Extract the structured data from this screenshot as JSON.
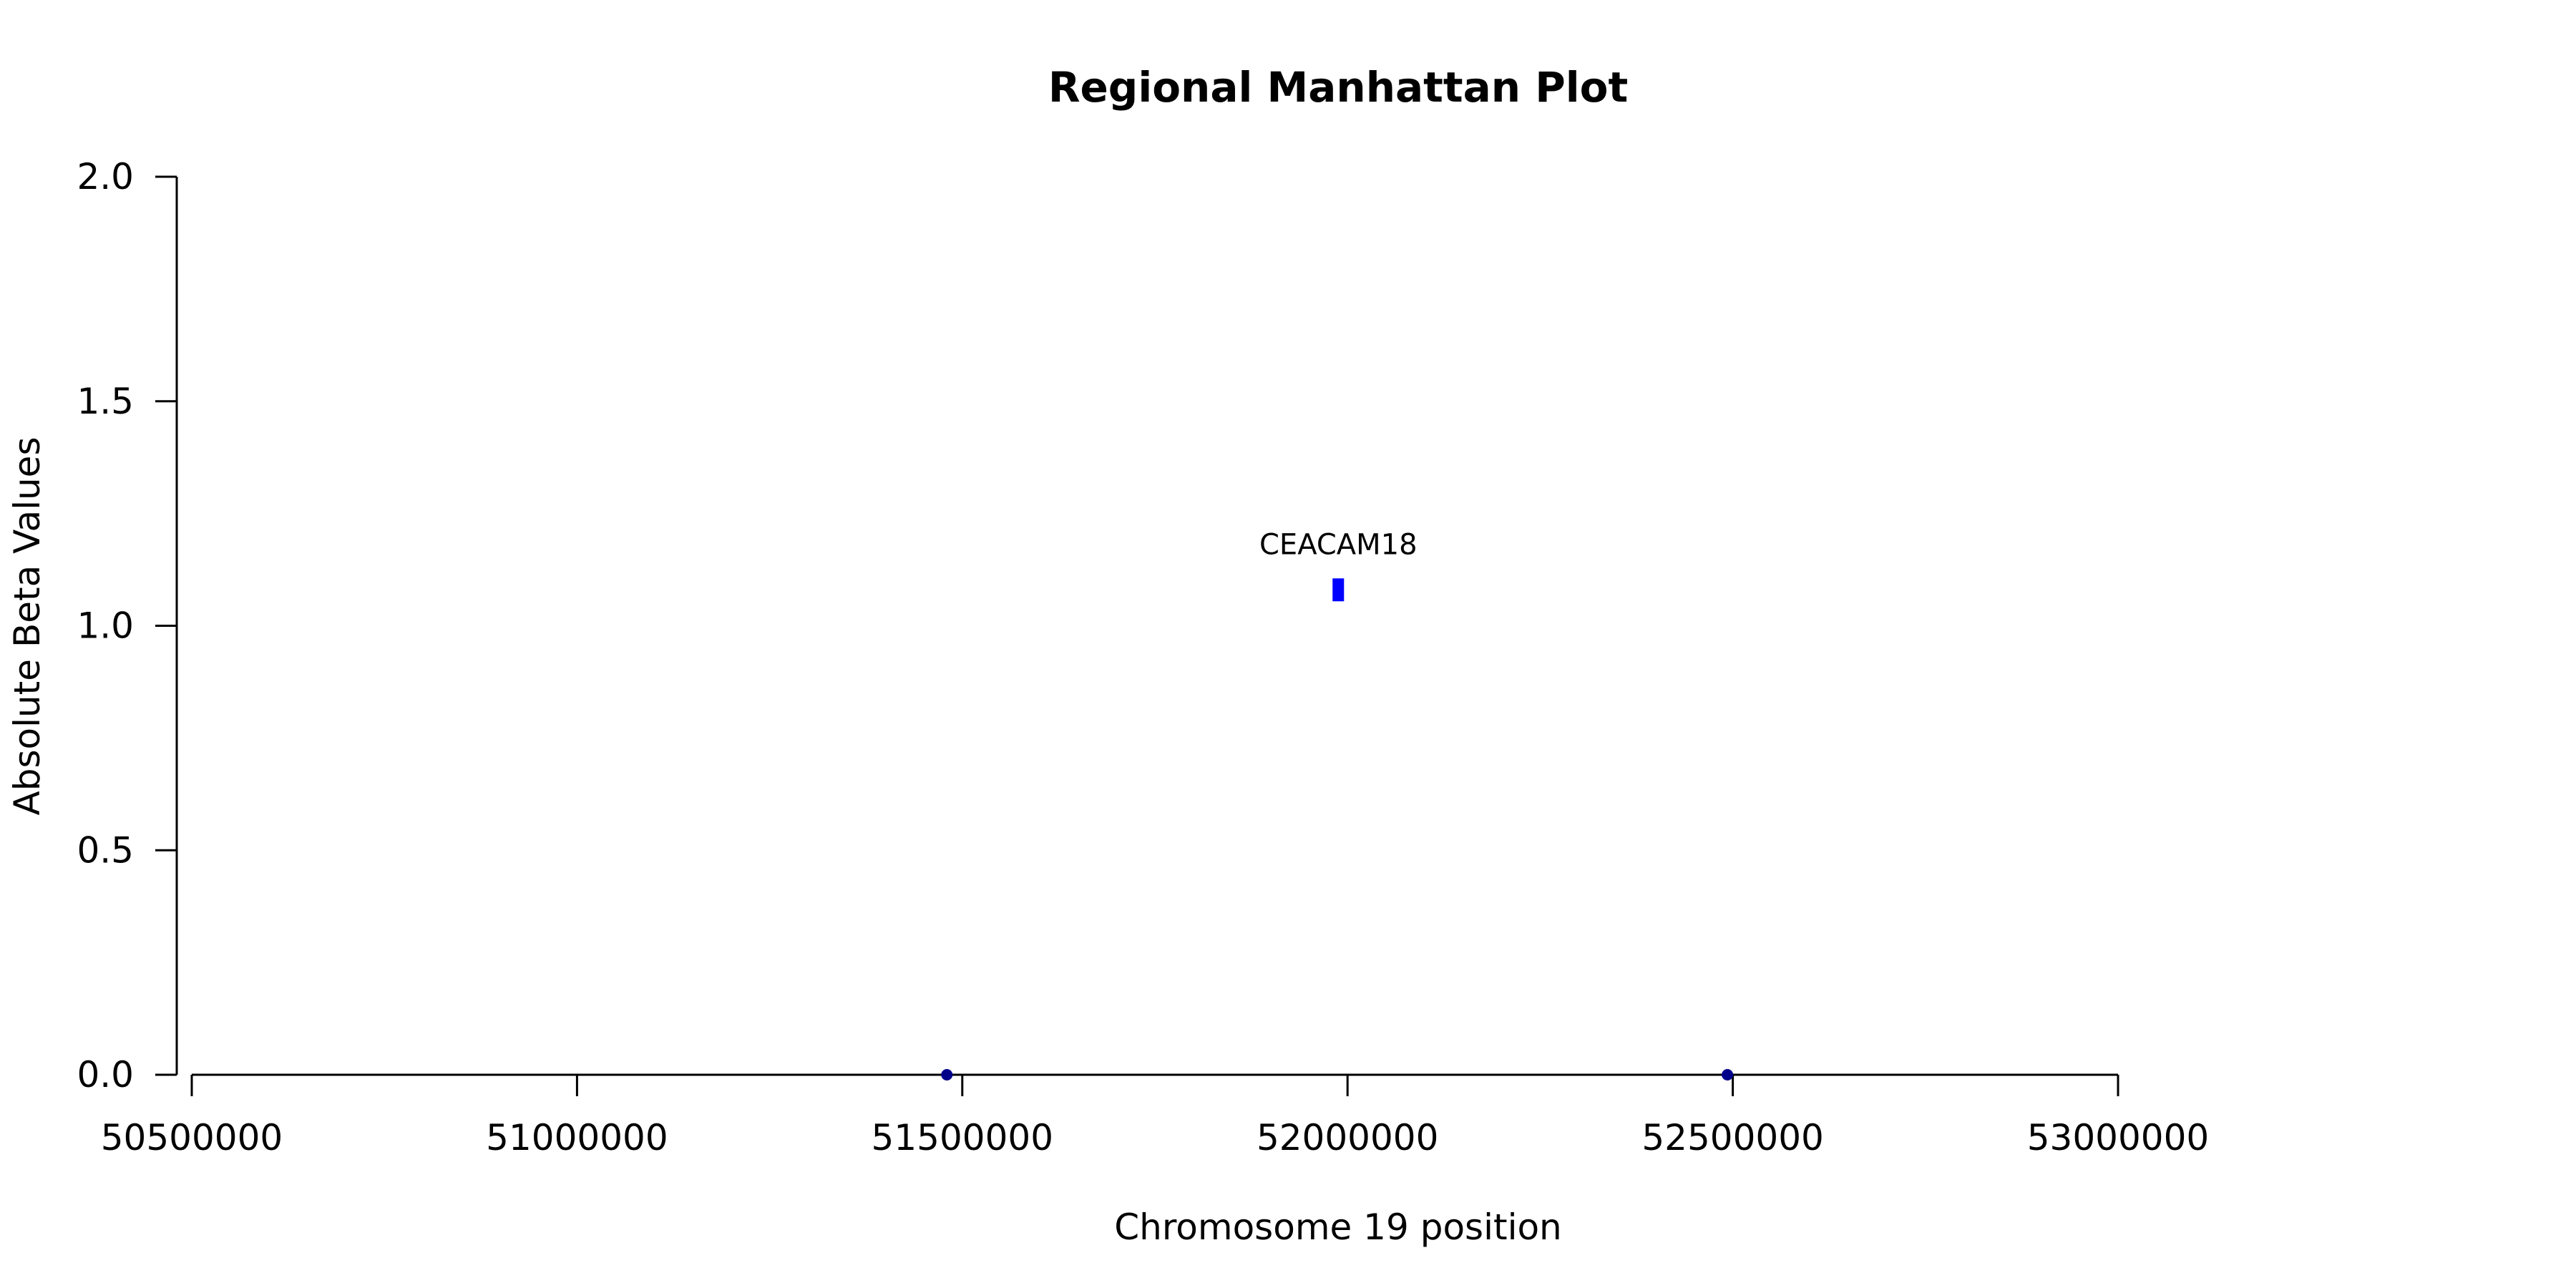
{
  "chart_data": {
    "type": "scatter",
    "title": "Regional Manhattan Plot",
    "xlabel": "Chromosome 19 position",
    "ylabel": "Absolute Beta Values",
    "xlim": [
      50500000,
      53000000
    ],
    "ylim": [
      0,
      2
    ],
    "x_ticks": [
      "50500000",
      "51000000",
      "51500000",
      "52000000",
      "52500000",
      "53000000"
    ],
    "y_ticks": [
      "0.0",
      "0.5",
      "1.0",
      "1.5",
      "2.0"
    ],
    "grid": false,
    "legend": "none",
    "series": [
      {
        "color": "#00008b",
        "marker": "circle",
        "points": [
          {
            "x": 51480000,
            "y": 0.0
          },
          {
            "x": 52493000,
            "y": 0.0
          }
        ]
      },
      {
        "color": "#0000ff",
        "marker": "rect",
        "points": [
          {
            "x": 51988000,
            "y": 1.08,
            "label": "CEACAM18"
          }
        ]
      }
    ]
  }
}
